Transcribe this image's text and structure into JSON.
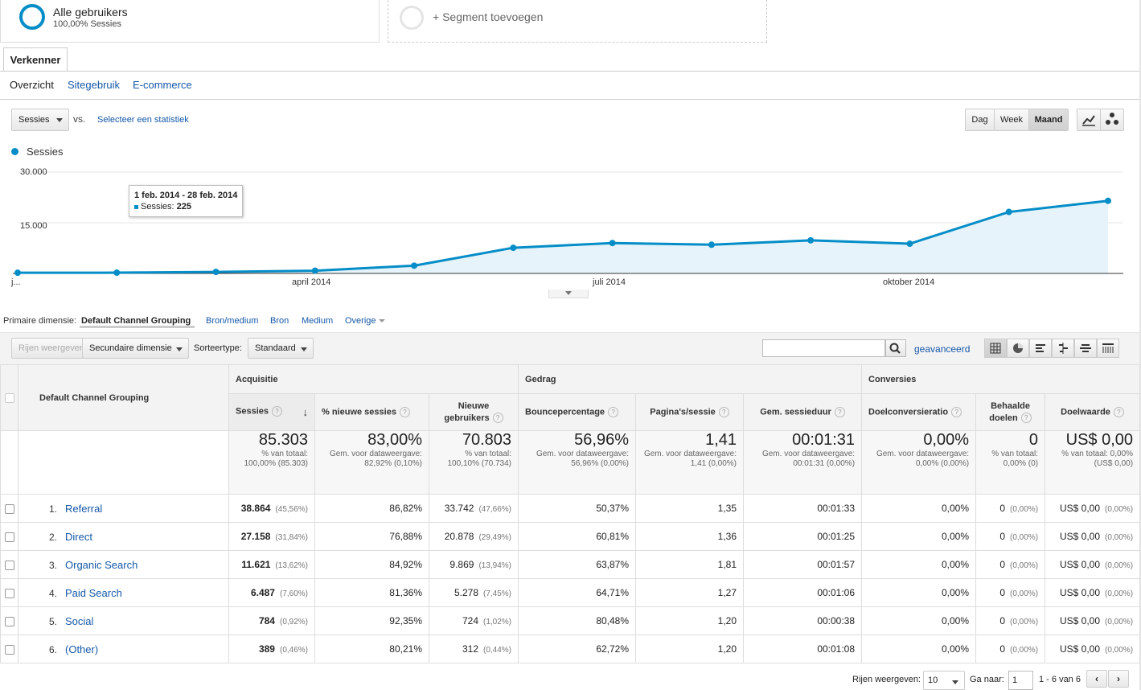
{
  "segments": {
    "active_title": "Alle gebruikers",
    "active_sub": "100,00% Sessies",
    "add_label": "+ Segment toevoegen"
  },
  "tabs": {
    "explorer": "Verkenner"
  },
  "subtabs": [
    "Overzicht",
    "Sitegebruik",
    "E-commerce"
  ],
  "controls": {
    "metric": "Sessies",
    "vs": "vs.",
    "select_stat": "Selecteer een statistiek",
    "granularity": [
      "Dag",
      "Week",
      "Maand"
    ],
    "active_granularity": "Maand"
  },
  "chart_data": {
    "type": "area",
    "legend": [
      "Sessies"
    ],
    "y_ticks": [
      "30.000",
      "15.000"
    ],
    "ylim": [
      0,
      30000
    ],
    "x_ticks": [
      "j...",
      "april 2014",
      "juli 2014",
      "oktober 2014"
    ],
    "x": [
      "2014-01",
      "2014-02",
      "2014-03",
      "2014-04",
      "2014-05",
      "2014-06",
      "2014-07",
      "2014-08",
      "2014-09",
      "2014-10",
      "2014-11",
      "2014-12"
    ],
    "series": [
      {
        "name": "Sessies",
        "values": [
          200,
          225,
          450,
          800,
          2300,
          7600,
          9000,
          8500,
          9800,
          8800,
          18200,
          21500
        ]
      }
    ],
    "tooltip": {
      "title": "1 feb. 2014 - 28 feb. 2014",
      "label": "Sessies:",
      "value": "225"
    },
    "color": "#058dc7"
  },
  "dimension": {
    "label": "Primaire dimensie:",
    "active": "Default Channel Grouping",
    "options": [
      "Bron/medium",
      "Bron",
      "Medium"
    ],
    "other": "Overige"
  },
  "toolbar": {
    "rows_btn": "Rijen weergeven",
    "secondary": "Secundaire dimensie",
    "sort_label": "Sorteertype:",
    "sort_value": "Standaard",
    "advanced": "geavanceerd"
  },
  "table": {
    "dim_header": "Default Channel Grouping",
    "groups": [
      "Acquisitie",
      "Gedrag",
      "Conversies"
    ],
    "columns": [
      "Sessies",
      "% nieuwe sessies",
      "Nieuwe gebruikers",
      "Bouncepercentage",
      "Pagina's/sessie",
      "Gem. sessieduur",
      "Doelconversieratio",
      "Behaalde doelen",
      "Doelwaarde"
    ],
    "totals": [
      {
        "big": "85.303",
        "small": "% van totaal: 100,00% (85.303)"
      },
      {
        "big": "83,00%",
        "small": "Gem. voor dataweergave: 82,92% (0,10%)"
      },
      {
        "big": "70.803",
        "small": "% van totaal: 100,10% (70.734)"
      },
      {
        "big": "56,96%",
        "small": "Gem. voor dataweergave: 56,96% (0,00%)"
      },
      {
        "big": "1,41",
        "small": "Gem. voor dataweergave: 1,41 (0,00%)"
      },
      {
        "big": "00:01:31",
        "small": "Gem. voor dataweergave: 00:01:31 (0,00%)"
      },
      {
        "big": "0,00%",
        "small": "Gem. voor dataweergave: 0,00% (0,00%)"
      },
      {
        "big": "0",
        "small": "% van totaal: 0,00% (0)"
      },
      {
        "big": "US$ 0,00",
        "small": "% van totaal: 0,00% (US$ 0,00)"
      }
    ],
    "rows": [
      {
        "n": "1.",
        "name": "Referral",
        "sessions": "38.864",
        "sessions_pct": "(45,56%)",
        "new_pct": "86,82%",
        "new_users": "33.742",
        "new_users_pct": "(47,66%)",
        "bounce": "50,37%",
        "pages": "1,35",
        "duration": "00:01:33",
        "conv": "0,00%",
        "goals": "0",
        "goals_pct": "(0,00%)",
        "value": "US$ 0,00",
        "value_pct": "(0,00%)"
      },
      {
        "n": "2.",
        "name": "Direct",
        "sessions": "27.158",
        "sessions_pct": "(31,84%)",
        "new_pct": "76,88%",
        "new_users": "20.878",
        "new_users_pct": "(29,49%)",
        "bounce": "60,81%",
        "pages": "1,36",
        "duration": "00:01:25",
        "conv": "0,00%",
        "goals": "0",
        "goals_pct": "(0,00%)",
        "value": "US$ 0,00",
        "value_pct": "(0,00%)"
      },
      {
        "n": "3.",
        "name": "Organic Search",
        "sessions": "11.621",
        "sessions_pct": "(13,62%)",
        "new_pct": "84,92%",
        "new_users": "9.869",
        "new_users_pct": "(13,94%)",
        "bounce": "63,87%",
        "pages": "1,81",
        "duration": "00:01:57",
        "conv": "0,00%",
        "goals": "0",
        "goals_pct": "(0,00%)",
        "value": "US$ 0,00",
        "value_pct": "(0,00%)"
      },
      {
        "n": "4.",
        "name": "Paid Search",
        "sessions": "6.487",
        "sessions_pct": "(7,60%)",
        "new_pct": "81,36%",
        "new_users": "5.278",
        "new_users_pct": "(7,45%)",
        "bounce": "64,71%",
        "pages": "1,27",
        "duration": "00:01:06",
        "conv": "0,00%",
        "goals": "0",
        "goals_pct": "(0,00%)",
        "value": "US$ 0,00",
        "value_pct": "(0,00%)"
      },
      {
        "n": "5.",
        "name": "Social",
        "sessions": "784",
        "sessions_pct": "(0,92%)",
        "new_pct": "92,35%",
        "new_users": "724",
        "new_users_pct": "(1,02%)",
        "bounce": "80,48%",
        "pages": "1,20",
        "duration": "00:00:38",
        "conv": "0,00%",
        "goals": "0",
        "goals_pct": "(0,00%)",
        "value": "US$ 0,00",
        "value_pct": "(0,00%)"
      },
      {
        "n": "6.",
        "name": "(Other)",
        "sessions": "389",
        "sessions_pct": "(0,46%)",
        "new_pct": "80,21%",
        "new_users": "312",
        "new_users_pct": "(0,44%)",
        "bounce": "62,72%",
        "pages": "1,20",
        "duration": "00:01:08",
        "conv": "0,00%",
        "goals": "0",
        "goals_pct": "(0,00%)",
        "value": "US$ 0,00",
        "value_pct": "(0,00%)"
      }
    ]
  },
  "pagination": {
    "rows_label": "Rijen weergeven:",
    "rows_value": "10",
    "goto_label": "Ga naar:",
    "goto_value": "1",
    "range": "1 - 6 van 6",
    "prev": "‹",
    "next": "›"
  }
}
